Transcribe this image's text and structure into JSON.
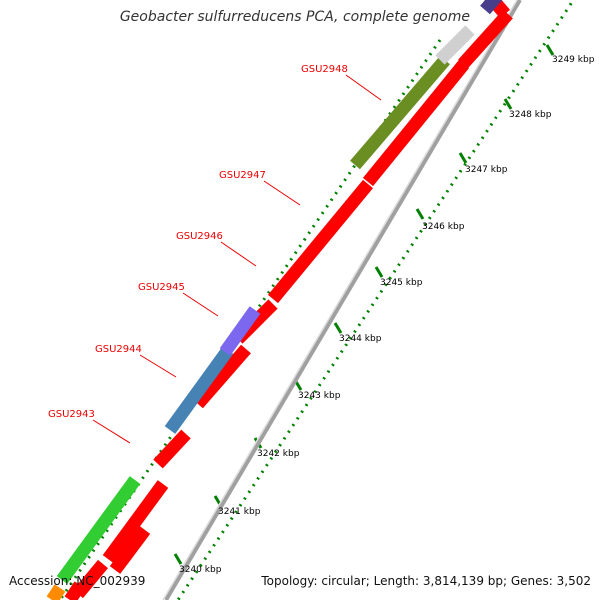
{
  "title": "Geobacter sulfurreducens PCA, complete genome",
  "footer": {
    "accession": "Accession: NC_002939",
    "summary": "Topology: circular; Length: 3,814,139 bp; Genes: 3,502"
  },
  "colors": {
    "background": "#ffffff",
    "backbone": "#a0a0a0",
    "reverse_gene": "#ff0000",
    "label_line": "#ee0000",
    "tick_color": "#008000",
    "kbp_label": "#000000"
  },
  "scale": {
    "kbp_labels": [
      "3240 kbp",
      "3241 kbp",
      "3242 kbp",
      "3243 kbp",
      "3244 kbp",
      "3245 kbp",
      "3246 kbp",
      "3247 kbp",
      "3248 kbp",
      "3249 kbp"
    ]
  },
  "gene_labels": [
    {
      "name": "GSU2943"
    },
    {
      "name": "GSU2944"
    },
    {
      "name": "GSU2945"
    },
    {
      "name": "GSU2946"
    },
    {
      "name": "GSU2947"
    },
    {
      "name": "GSU2948"
    }
  ],
  "forward_features": [
    {
      "color": "#ff8c00"
    },
    {
      "color": "#ff0000"
    },
    {
      "color": "#32cd32"
    },
    {
      "color": "#ff0000"
    },
    {
      "color": "#4682b4"
    },
    {
      "color": "#7b68ee"
    },
    {
      "color": "#6b8e23"
    },
    {
      "color": "#d0d0d0"
    },
    {
      "color": "#483d8b"
    }
  ]
}
